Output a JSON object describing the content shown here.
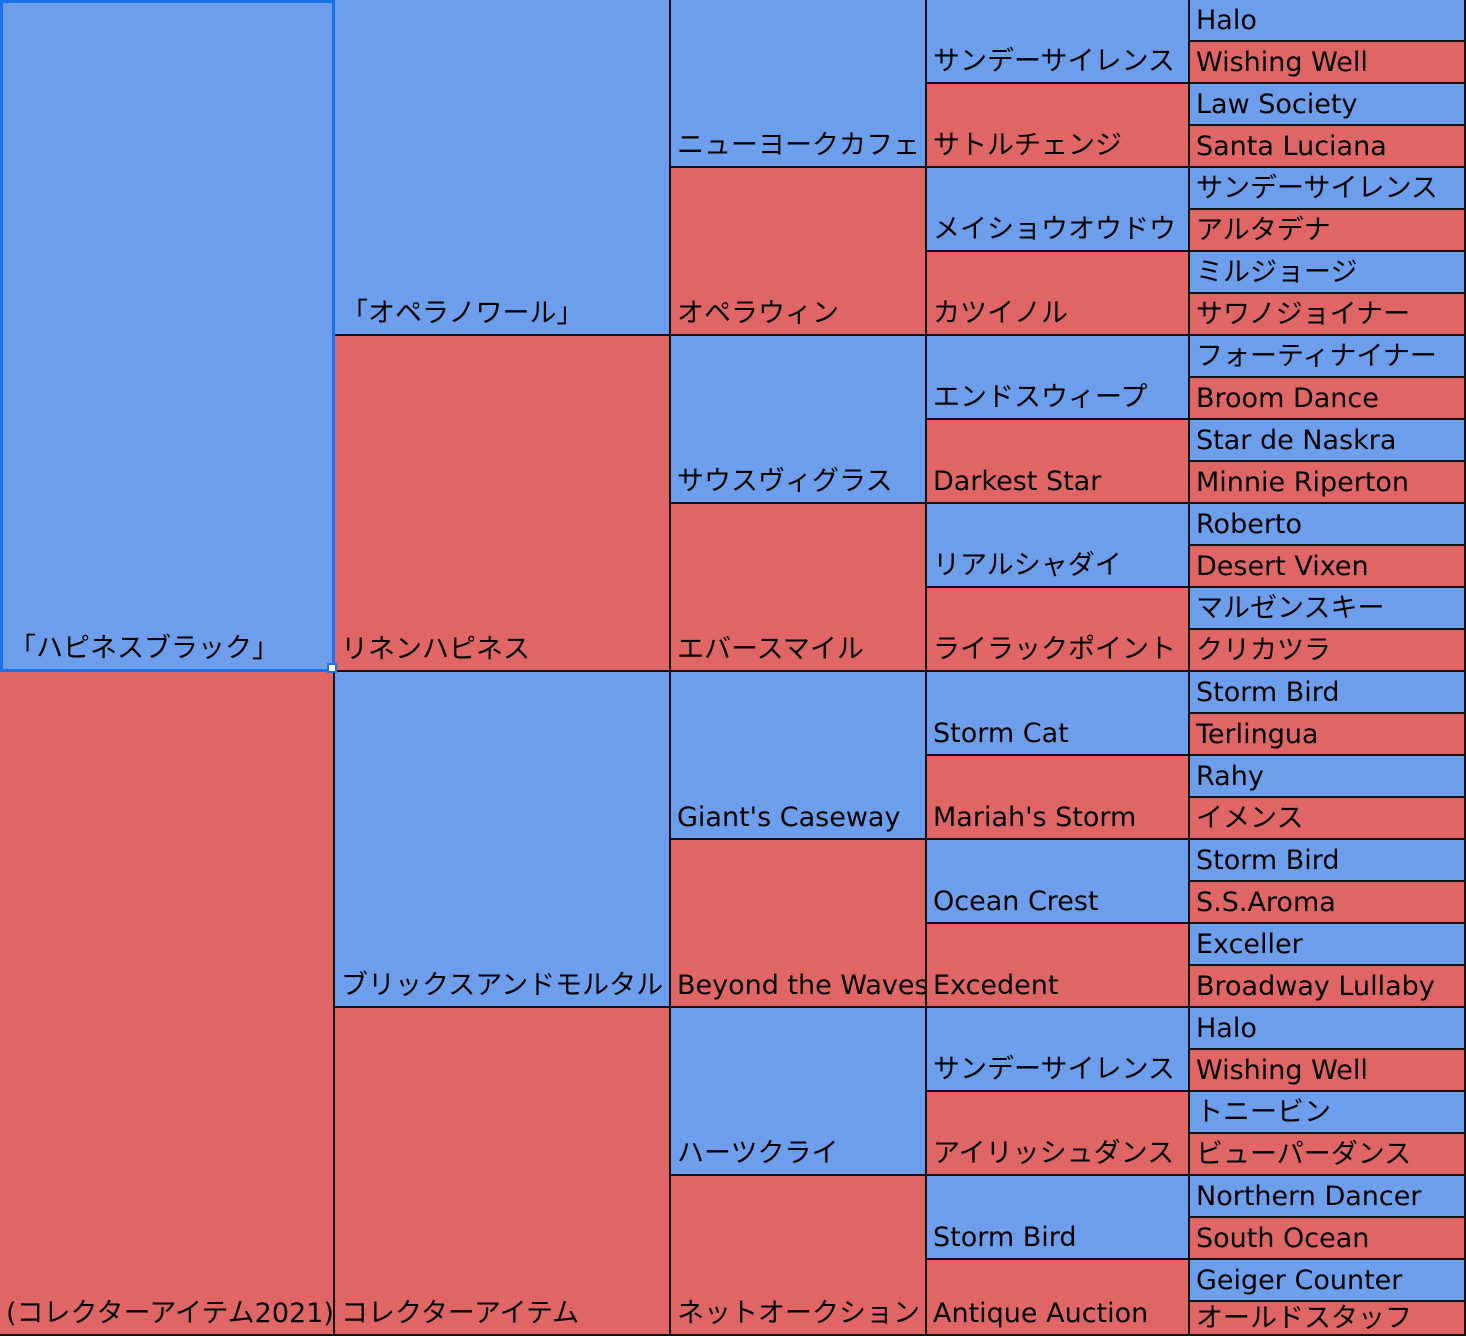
{
  "colors": {
    "male": "#6d9eeb",
    "female": "#e06666",
    "selection": "#1a73e8"
  },
  "selected_cell": "gen1-sire",
  "pedigree": [
    {
      "id": "gen1-sire",
      "gen": 1,
      "index": 0,
      "sex": "male",
      "name": "「ハピネスブラック」"
    },
    {
      "id": "gen1-dam",
      "gen": 1,
      "index": 1,
      "sex": "female",
      "name": "(コレクターアイテム2021)"
    },
    {
      "id": "gen2-0",
      "gen": 2,
      "index": 0,
      "sex": "male",
      "name": "「オペラノワール」"
    },
    {
      "id": "gen2-1",
      "gen": 2,
      "index": 1,
      "sex": "female",
      "name": "リネンハピネス"
    },
    {
      "id": "gen2-2",
      "gen": 2,
      "index": 2,
      "sex": "male",
      "name": "ブリックスアンドモルタル"
    },
    {
      "id": "gen2-3",
      "gen": 2,
      "index": 3,
      "sex": "female",
      "name": "コレクターアイテム"
    },
    {
      "id": "gen3-0",
      "gen": 3,
      "index": 0,
      "sex": "male",
      "name": "ニューヨークカフェ"
    },
    {
      "id": "gen3-1",
      "gen": 3,
      "index": 1,
      "sex": "female",
      "name": "オペラウィン"
    },
    {
      "id": "gen3-2",
      "gen": 3,
      "index": 2,
      "sex": "male",
      "name": "サウスヴィグラス"
    },
    {
      "id": "gen3-3",
      "gen": 3,
      "index": 3,
      "sex": "female",
      "name": "エバースマイル"
    },
    {
      "id": "gen3-4",
      "gen": 3,
      "index": 4,
      "sex": "male",
      "name": "Giant's Caseway"
    },
    {
      "id": "gen3-5",
      "gen": 3,
      "index": 5,
      "sex": "female",
      "name": "Beyond the Waves"
    },
    {
      "id": "gen3-6",
      "gen": 3,
      "index": 6,
      "sex": "male",
      "name": "ハーツクライ"
    },
    {
      "id": "gen3-7",
      "gen": 3,
      "index": 7,
      "sex": "female",
      "name": "ネットオークション"
    },
    {
      "id": "gen4-0",
      "gen": 4,
      "index": 0,
      "sex": "male",
      "name": "サンデーサイレンス"
    },
    {
      "id": "gen4-1",
      "gen": 4,
      "index": 1,
      "sex": "female",
      "name": "サトルチェンジ"
    },
    {
      "id": "gen4-2",
      "gen": 4,
      "index": 2,
      "sex": "male",
      "name": "メイショウオウドウ"
    },
    {
      "id": "gen4-3",
      "gen": 4,
      "index": 3,
      "sex": "female",
      "name": "カツイノル"
    },
    {
      "id": "gen4-4",
      "gen": 4,
      "index": 4,
      "sex": "male",
      "name": "エンドスウィープ"
    },
    {
      "id": "gen4-5",
      "gen": 4,
      "index": 5,
      "sex": "female",
      "name": "Darkest Star"
    },
    {
      "id": "gen4-6",
      "gen": 4,
      "index": 6,
      "sex": "male",
      "name": "リアルシャダイ"
    },
    {
      "id": "gen4-7",
      "gen": 4,
      "index": 7,
      "sex": "female",
      "name": "ライラックポイント"
    },
    {
      "id": "gen4-8",
      "gen": 4,
      "index": 8,
      "sex": "male",
      "name": "Storm Cat"
    },
    {
      "id": "gen4-9",
      "gen": 4,
      "index": 9,
      "sex": "female",
      "name": "Mariah's Storm"
    },
    {
      "id": "gen4-10",
      "gen": 4,
      "index": 10,
      "sex": "male",
      "name": "Ocean Crest"
    },
    {
      "id": "gen4-11",
      "gen": 4,
      "index": 11,
      "sex": "female",
      "name": "Excedent"
    },
    {
      "id": "gen4-12",
      "gen": 4,
      "index": 12,
      "sex": "male",
      "name": "サンデーサイレンス"
    },
    {
      "id": "gen4-13",
      "gen": 4,
      "index": 13,
      "sex": "female",
      "name": "アイリッシュダンス"
    },
    {
      "id": "gen4-14",
      "gen": 4,
      "index": 14,
      "sex": "male",
      "name": "Storm Bird"
    },
    {
      "id": "gen4-15",
      "gen": 4,
      "index": 15,
      "sex": "female",
      "name": "Antique Auction"
    },
    {
      "id": "gen5-0",
      "gen": 5,
      "index": 0,
      "sex": "male",
      "name": "Halo"
    },
    {
      "id": "gen5-1",
      "gen": 5,
      "index": 1,
      "sex": "female",
      "name": "Wishing Well"
    },
    {
      "id": "gen5-2",
      "gen": 5,
      "index": 2,
      "sex": "male",
      "name": "Law Society"
    },
    {
      "id": "gen5-3",
      "gen": 5,
      "index": 3,
      "sex": "female",
      "name": "Santa Luciana"
    },
    {
      "id": "gen5-4",
      "gen": 5,
      "index": 4,
      "sex": "male",
      "name": "サンデーサイレンス"
    },
    {
      "id": "gen5-5",
      "gen": 5,
      "index": 5,
      "sex": "female",
      "name": "アルタデナ"
    },
    {
      "id": "gen5-6",
      "gen": 5,
      "index": 6,
      "sex": "male",
      "name": "ミルジョージ"
    },
    {
      "id": "gen5-7",
      "gen": 5,
      "index": 7,
      "sex": "female",
      "name": "サワノジョイナー"
    },
    {
      "id": "gen5-8",
      "gen": 5,
      "index": 8,
      "sex": "male",
      "name": "フォーティナイナー"
    },
    {
      "id": "gen5-9",
      "gen": 5,
      "index": 9,
      "sex": "female",
      "name": "Broom Dance"
    },
    {
      "id": "gen5-10",
      "gen": 5,
      "index": 10,
      "sex": "male",
      "name": "Star de Naskra"
    },
    {
      "id": "gen5-11",
      "gen": 5,
      "index": 11,
      "sex": "female",
      "name": "Minnie Riperton"
    },
    {
      "id": "gen5-12",
      "gen": 5,
      "index": 12,
      "sex": "male",
      "name": "Roberto"
    },
    {
      "id": "gen5-13",
      "gen": 5,
      "index": 13,
      "sex": "female",
      "name": "Desert Vixen"
    },
    {
      "id": "gen5-14",
      "gen": 5,
      "index": 14,
      "sex": "male",
      "name": "マルゼンスキー"
    },
    {
      "id": "gen5-15",
      "gen": 5,
      "index": 15,
      "sex": "female",
      "name": "クリカツラ"
    },
    {
      "id": "gen5-16",
      "gen": 5,
      "index": 16,
      "sex": "male",
      "name": "Storm Bird"
    },
    {
      "id": "gen5-17",
      "gen": 5,
      "index": 17,
      "sex": "female",
      "name": "Terlingua"
    },
    {
      "id": "gen5-18",
      "gen": 5,
      "index": 18,
      "sex": "male",
      "name": "Rahy"
    },
    {
      "id": "gen5-19",
      "gen": 5,
      "index": 19,
      "sex": "female",
      "name": "イメンス"
    },
    {
      "id": "gen5-20",
      "gen": 5,
      "index": 20,
      "sex": "male",
      "name": "Storm Bird"
    },
    {
      "id": "gen5-21",
      "gen": 5,
      "index": 21,
      "sex": "female",
      "name": "S.S.Aroma"
    },
    {
      "id": "gen5-22",
      "gen": 5,
      "index": 22,
      "sex": "male",
      "name": "Exceller"
    },
    {
      "id": "gen5-23",
      "gen": 5,
      "index": 23,
      "sex": "female",
      "name": "Broadway Lullaby"
    },
    {
      "id": "gen5-24",
      "gen": 5,
      "index": 24,
      "sex": "male",
      "name": "Halo"
    },
    {
      "id": "gen5-25",
      "gen": 5,
      "index": 25,
      "sex": "female",
      "name": "Wishing Well"
    },
    {
      "id": "gen5-26",
      "gen": 5,
      "index": 26,
      "sex": "male",
      "name": "トニービン"
    },
    {
      "id": "gen5-27",
      "gen": 5,
      "index": 27,
      "sex": "female",
      "name": "ビューパーダンス"
    },
    {
      "id": "gen5-28",
      "gen": 5,
      "index": 28,
      "sex": "male",
      "name": "Northern Dancer"
    },
    {
      "id": "gen5-29",
      "gen": 5,
      "index": 29,
      "sex": "female",
      "name": "South Ocean"
    },
    {
      "id": "gen5-30",
      "gen": 5,
      "index": 30,
      "sex": "male",
      "name": "Geiger Counter"
    },
    {
      "id": "gen5-31",
      "gen": 5,
      "index": 31,
      "sex": "female",
      "name": "オールドスタッフ"
    }
  ]
}
